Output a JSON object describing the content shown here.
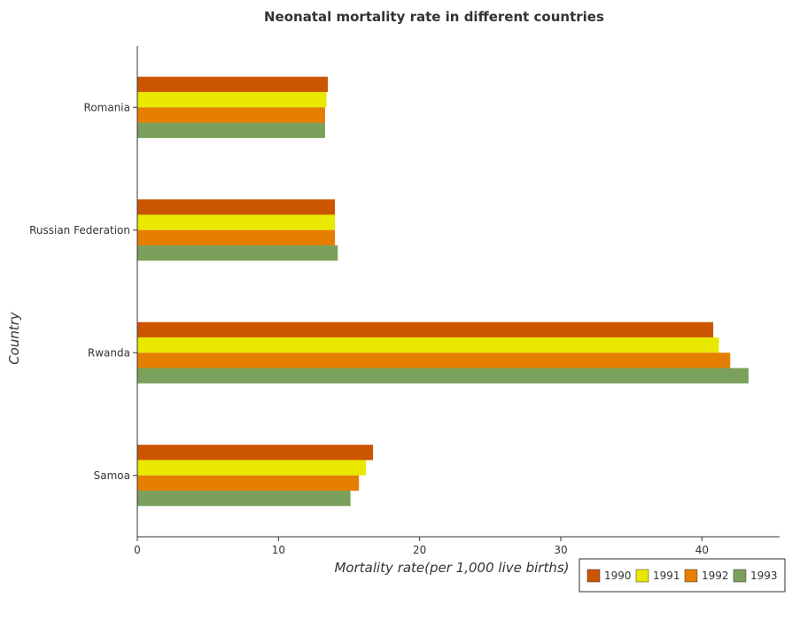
{
  "chart_data": {
    "type": "bar",
    "orientation": "horizontal",
    "title": "Neonatal mortality rate in different countries",
    "xlabel": "Mortality rate(per 1,000 live births)",
    "ylabel": "Country",
    "categories": [
      "Romania",
      "Russian Federation",
      "Rwanda",
      "Samoa"
    ],
    "xlim": [
      0,
      45.5
    ],
    "xticks": [
      0,
      10,
      20,
      30,
      40
    ],
    "xtick_labels": [
      "0",
      "10",
      "20",
      "30",
      "40"
    ],
    "grid": false,
    "legend_position": "bottom-right",
    "series": [
      {
        "name": "1990",
        "color": "#cc5500",
        "values": [
          13.5,
          14.0,
          40.8,
          16.7
        ]
      },
      {
        "name": "1991",
        "color": "#e8e800",
        "values": [
          13.4,
          14.0,
          41.2,
          16.2
        ]
      },
      {
        "name": "1992",
        "color": "#e67e00",
        "values": [
          13.3,
          14.0,
          42.0,
          15.7
        ]
      },
      {
        "name": "1993",
        "color": "#7ba05b",
        "values": [
          13.3,
          14.2,
          43.3,
          15.1
        ]
      }
    ]
  }
}
